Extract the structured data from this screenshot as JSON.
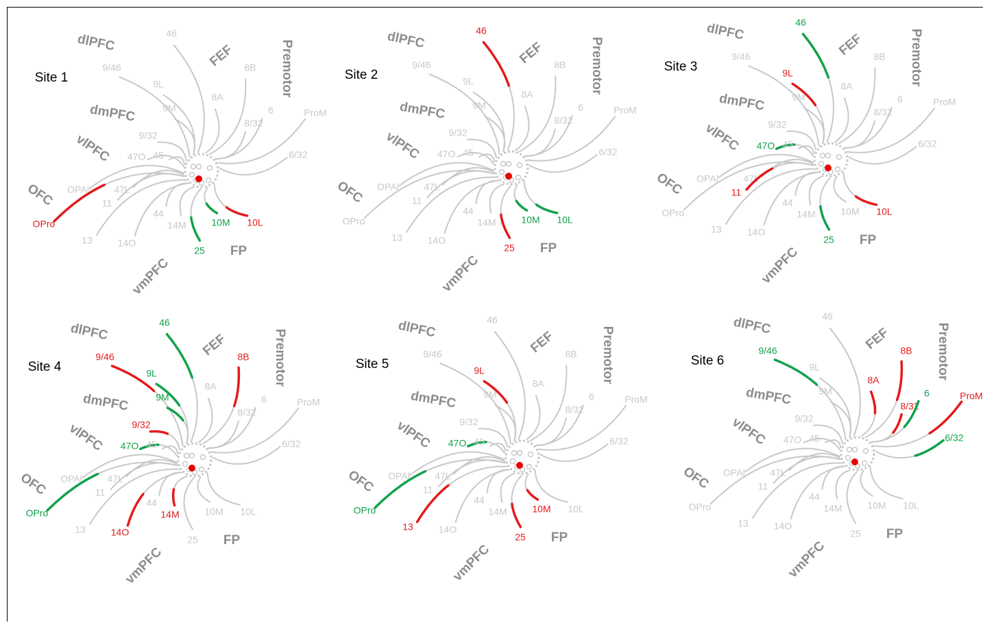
{
  "sites": [
    {
      "title": "Site 1",
      "area_colors": [
        null,
        null,
        null,
        null,
        null,
        null,
        null,
        null,
        null,
        null,
        null,
        "#e31a1c",
        null,
        null,
        null,
        "#12a14b",
        "#12a14b",
        "#e31a1c",
        null,
        null,
        null,
        null,
        null,
        null
      ]
    },
    {
      "title": "Site 2",
      "area_colors": [
        "#e31a1c",
        null,
        null,
        null,
        null,
        null,
        null,
        null,
        null,
        null,
        null,
        null,
        null,
        null,
        null,
        "#e31a1c",
        "#12a14b",
        "#12a14b",
        null,
        null,
        null,
        null,
        null,
        null
      ]
    },
    {
      "title": "Site 3",
      "area_colors": [
        "#12a14b",
        null,
        "#e31a1c",
        null,
        null,
        "#12a14b",
        null,
        null,
        null,
        "#e31a1c",
        null,
        null,
        null,
        null,
        null,
        "#12a14b",
        null,
        "#e31a1c",
        null,
        null,
        null,
        null,
        null,
        null
      ]
    },
    {
      "title": "Site 4",
      "area_colors": [
        "#12a14b",
        "#e31a1c",
        "#12a14b",
        "#12a14b",
        "#e31a1c",
        "#12a14b",
        null,
        null,
        null,
        null,
        null,
        "#12a14b",
        null,
        "#e31a1c",
        "#e31a1c",
        null,
        null,
        null,
        "#e31a1c",
        null,
        null,
        null,
        null,
        null
      ]
    },
    {
      "title": "Site 5",
      "area_colors": [
        null,
        null,
        "#e31a1c",
        null,
        null,
        "#12a14b",
        null,
        null,
        null,
        null,
        null,
        "#12a14b",
        "#e31a1c",
        null,
        null,
        "#e31a1c",
        "#e31a1c",
        null,
        null,
        null,
        null,
        null,
        null,
        null
      ]
    },
    {
      "title": "Site 6",
      "area_colors": [
        null,
        "#12a14b",
        null,
        null,
        null,
        null,
        null,
        null,
        null,
        null,
        null,
        null,
        null,
        null,
        null,
        null,
        null,
        null,
        "#e31a1c",
        "#e31a1c",
        "#e31a1c",
        "#12a14b",
        "#e31a1c",
        "#12a14b"
      ]
    }
  ],
  "areas": [
    "46",
    "9/46",
    "9L",
    "9M",
    "9/32",
    "47O",
    "45",
    "OPAl",
    "47L",
    "11",
    "44",
    "OPro",
    "13",
    "14O",
    "14M",
    "25",
    "10M",
    "10L",
    "8B",
    "8A",
    "8/32",
    "6",
    "ProM",
    "6/32"
  ],
  "regions": [
    "dlPFC",
    "FEF",
    "Premotor",
    "dmPFC",
    "vlPFC",
    "OFC",
    "vmPFC",
    "FP"
  ]
}
